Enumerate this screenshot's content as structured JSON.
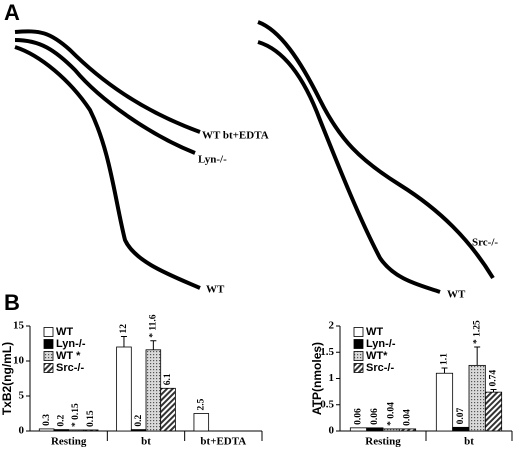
{
  "panel_labels": [
    "A",
    "B"
  ],
  "traces": {
    "left": [
      "WT bt+EDTA",
      "Lyn-/-",
      "WT"
    ],
    "right": [
      "Src-/-",
      "WT"
    ]
  },
  "chart_data": [
    {
      "type": "bar",
      "y_label": "TxB2(ng/mL)",
      "categories": [
        "Resting",
        "bt",
        "bt+EDTA"
      ],
      "ylim": [
        0,
        15
      ],
      "yticks": [
        0,
        5,
        10,
        15
      ],
      "legend": "top-left",
      "series": [
        {
          "name": "WT",
          "color": "#ffffff",
          "values": [
            0.3,
            12,
            2.5
          ],
          "value_labels": [
            "0.3",
            "12",
            "2.5"
          ],
          "errors": [
            null,
            1.5,
            null
          ]
        },
        {
          "name": "Lyn-/-",
          "color": "#000000",
          "values": [
            0.2,
            0.2,
            null
          ],
          "value_labels": [
            "0.2",
            "0.2",
            null
          ],
          "errors": [
            null,
            null,
            null
          ]
        },
        {
          "name": "WT *",
          "color": "#bdbdbd",
          "pattern": "dots",
          "values": [
            0.15,
            11.6,
            null
          ],
          "value_labels": [
            "* 0.15",
            "* 11.6",
            null
          ],
          "errors": [
            null,
            1.3,
            null
          ]
        },
        {
          "name": "Src-/-",
          "color": "#555555",
          "pattern": "hatch",
          "values": [
            0.15,
            6.1,
            null
          ],
          "value_labels": [
            "0.15",
            "6.1",
            null
          ],
          "errors": [
            null,
            null,
            null
          ]
        }
      ]
    },
    {
      "type": "bar",
      "y_label": "ATP(nmoles)",
      "categories": [
        "Resting",
        "bt"
      ],
      "ylim": [
        0,
        2
      ],
      "yticks": [
        0,
        0.5,
        1,
        1.5,
        2
      ],
      "legend": "top-left",
      "series": [
        {
          "name": "WT",
          "color": "#ffffff",
          "values": [
            0.06,
            1.1
          ],
          "value_labels": [
            "0.06",
            "1.1"
          ],
          "errors": [
            null,
            0.1
          ]
        },
        {
          "name": "Lyn-/-",
          "color": "#000000",
          "values": [
            0.06,
            0.07
          ],
          "value_labels": [
            "0.06",
            "0.07"
          ],
          "errors": [
            null,
            null
          ]
        },
        {
          "name": "WT*",
          "color": "#bdbdbd",
          "pattern": "dots",
          "values": [
            0.04,
            1.25
          ],
          "value_labels": [
            "* 0.04",
            "* 1.25"
          ],
          "errors": [
            null,
            0.35
          ]
        },
        {
          "name": "Src-/-",
          "color": "#555555",
          "pattern": "hatch",
          "values": [
            0.04,
            0.74
          ],
          "value_labels": [
            "0.04",
            "0.74"
          ],
          "errors": [
            null,
            0.05
          ]
        }
      ]
    }
  ]
}
